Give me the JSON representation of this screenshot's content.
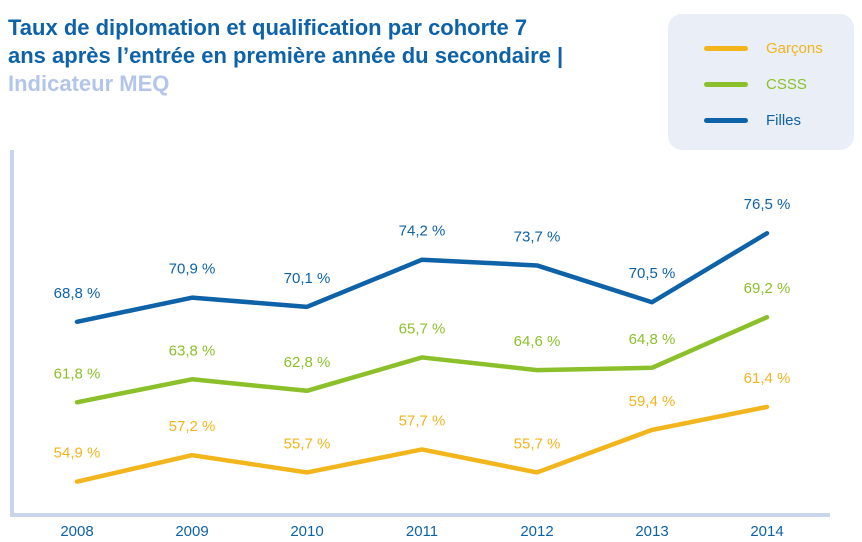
{
  "chart_data": {
    "type": "line",
    "title": "Taux de diplomation et qualification par cohorte 7 ans après l’entrée en première année du secondaire |",
    "subtitle": "Indicateur MEQ",
    "categories": [
      "2008",
      "2009",
      "2010",
      "2011",
      "2012",
      "2013",
      "2014"
    ],
    "series": [
      {
        "name": "Garçons",
        "color": "#f2b51c",
        "values": [
          54.9,
          57.2,
          55.7,
          57.7,
          55.7,
          59.4,
          61.4
        ],
        "value_labels": [
          "54,9 %",
          "57,2 %",
          "55,7 %",
          "57,7 %",
          "55,7 %",
          "59,4 %",
          "61,4 %"
        ]
      },
      {
        "name": "CSSS",
        "color": "#8cc02a",
        "values": [
          61.8,
          63.8,
          62.8,
          65.7,
          64.6,
          64.8,
          69.2
        ],
        "value_labels": [
          "61,8 %",
          "63,8 %",
          "62,8 %",
          "65,7 %",
          "64,6 %",
          "64,8 %",
          "69,2 %"
        ]
      },
      {
        "name": "Filles",
        "color": "#0e62a8",
        "values": [
          68.8,
          70.9,
          70.1,
          74.2,
          73.7,
          70.5,
          76.5
        ],
        "value_labels": [
          "68,8 %",
          "70,9 %",
          "70,1 %",
          "74,2 %",
          "73,7 %",
          "70,5 %",
          "76,5 %"
        ]
      }
    ],
    "ylim": [
      52,
      78
    ]
  }
}
